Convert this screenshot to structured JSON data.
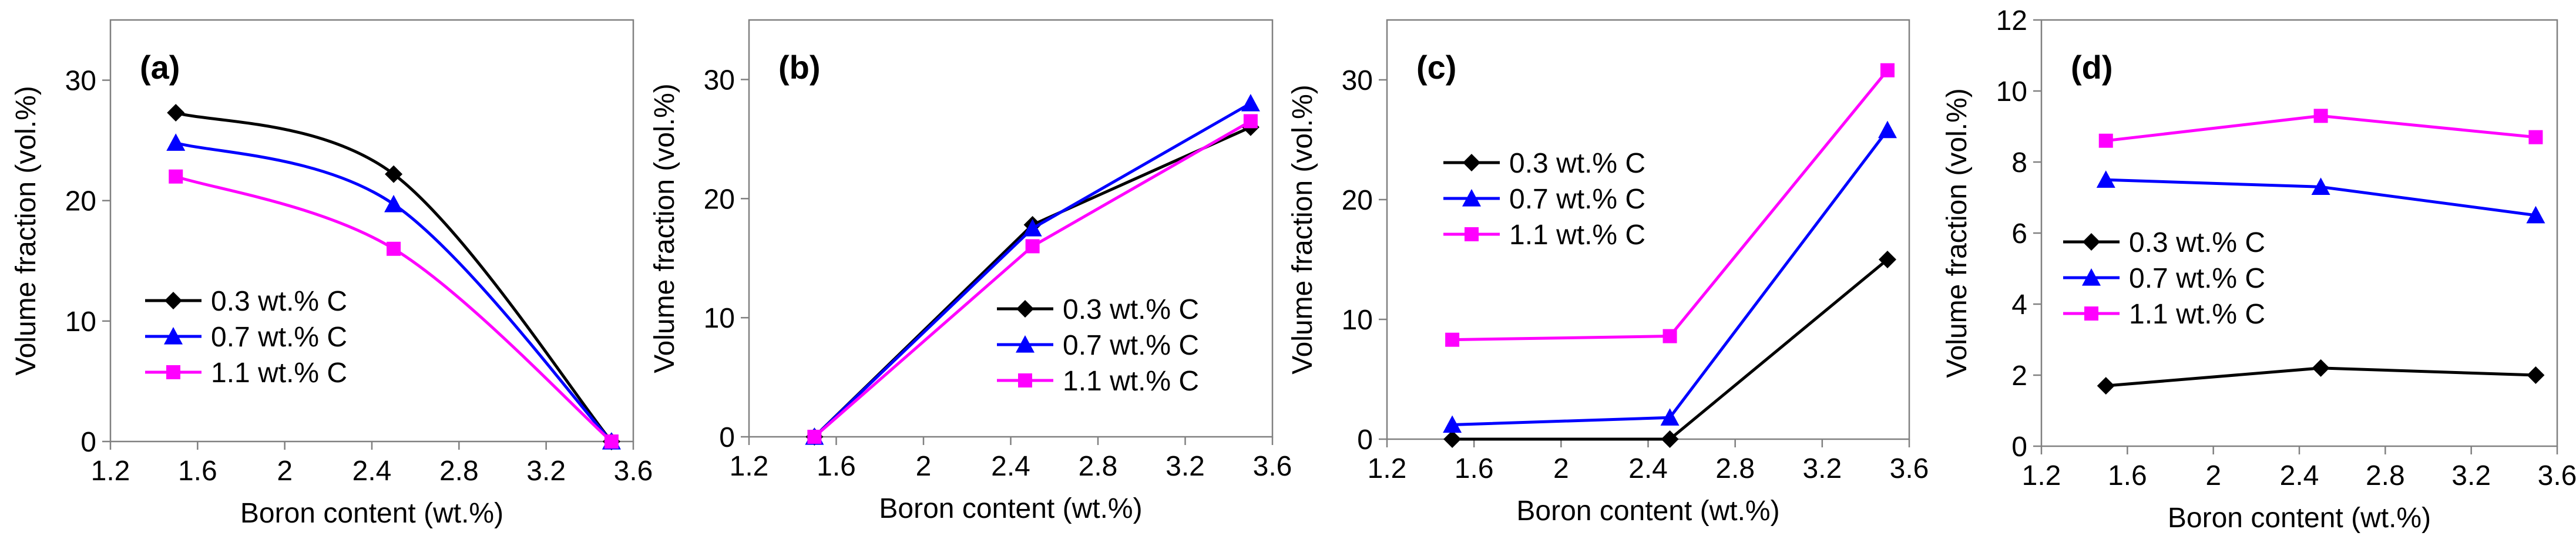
{
  "chart_data": [
    {
      "panel_label": "(a)",
      "type": "line",
      "xlabel": "Boron content (wt.%)",
      "ylabel": "Volume fraction (vol.%)",
      "xlim": [
        1.2,
        3.6
      ],
      "ylim": [
        0,
        35
      ],
      "xticks": [
        1.2,
        1.6,
        2,
        2.4,
        2.8,
        3.2,
        3.6
      ],
      "yticks": [
        0,
        10,
        20,
        30
      ],
      "curve": "smooth",
      "x": [
        1.5,
        2.5,
        3.5
      ],
      "series": [
        {
          "name": "0.3 wt.% C",
          "values": [
            27.3,
            22.2,
            0
          ],
          "color": "#000000",
          "marker": "diamond"
        },
        {
          "name": "0.7 wt.% C",
          "values": [
            24.8,
            19.7,
            0
          ],
          "color": "#0000ff",
          "marker": "triangle"
        },
        {
          "name": "1.1 wt.% C",
          "values": [
            22.0,
            16.0,
            0
          ],
          "color": "#ff00ff",
          "marker": "square"
        }
      ],
      "legend": "bottom-left"
    },
    {
      "panel_label": "(b)",
      "type": "line",
      "xlabel": "Boron content (wt.%)",
      "ylabel": "Volume fraction (vol.%)",
      "xlim": [
        1.2,
        3.6
      ],
      "ylim": [
        0,
        35
      ],
      "xticks": [
        1.2,
        1.6,
        2,
        2.4,
        2.8,
        3.2,
        3.6
      ],
      "yticks": [
        0,
        10,
        20,
        30
      ],
      "curve": "straight",
      "x": [
        1.5,
        2.5,
        3.5
      ],
      "series": [
        {
          "name": "0.3 wt.% C",
          "values": [
            0,
            17.8,
            26.0
          ],
          "color": "#000000",
          "marker": "diamond"
        },
        {
          "name": "0.7 wt.% C",
          "values": [
            0,
            17.5,
            28.0
          ],
          "color": "#0000ff",
          "marker": "triangle"
        },
        {
          "name": "1.1 wt.% C",
          "values": [
            0,
            16.0,
            26.5
          ],
          "color": "#ff00ff",
          "marker": "square"
        }
      ],
      "legend": "bottom-right"
    },
    {
      "panel_label": "(c)",
      "type": "line",
      "xlabel": "Boron content (wt.%)",
      "ylabel": "Volume fraction (vol.%)",
      "xlim": [
        1.2,
        3.6
      ],
      "ylim": [
        0,
        35
      ],
      "xticks": [
        1.2,
        1.6,
        2,
        2.4,
        2.8,
        3.2,
        3.6
      ],
      "yticks": [
        0,
        10,
        20,
        30
      ],
      "curve": "straight",
      "x": [
        1.5,
        2.5,
        3.5
      ],
      "series": [
        {
          "name": "0.3 wt.% C",
          "values": [
            0,
            0,
            15.0
          ],
          "color": "#000000",
          "marker": "diamond"
        },
        {
          "name": "0.7 wt.% C",
          "values": [
            1.2,
            1.8,
            25.8
          ],
          "color": "#0000ff",
          "marker": "triangle"
        },
        {
          "name": "1.1 wt.% C",
          "values": [
            8.3,
            8.6,
            30.8
          ],
          "color": "#ff00ff",
          "marker": "square"
        }
      ],
      "legend": "top-left"
    },
    {
      "panel_label": "(d)",
      "type": "line",
      "xlabel": "Boron content (wt.%)",
      "ylabel": "Volume fraction (vol.%)",
      "xlim": [
        1.2,
        3.6
      ],
      "ylim": [
        0,
        12
      ],
      "xticks": [
        1.2,
        1.6,
        2,
        2.4,
        2.8,
        3.2,
        3.6
      ],
      "yticks": [
        0,
        2,
        4,
        6,
        8,
        10,
        12
      ],
      "curve": "straight",
      "x": [
        1.5,
        2.5,
        3.5
      ],
      "series": [
        {
          "name": "0.3 wt.% C",
          "values": [
            1.7,
            2.2,
            2.0
          ],
          "color": "#000000",
          "marker": "diamond"
        },
        {
          "name": "0.7 wt.% C",
          "values": [
            7.5,
            7.3,
            6.5
          ],
          "color": "#0000ff",
          "marker": "triangle"
        },
        {
          "name": "1.1 wt.% C",
          "values": [
            8.6,
            9.3,
            8.7
          ],
          "color": "#ff00ff",
          "marker": "square"
        }
      ],
      "legend": "center-left"
    }
  ]
}
